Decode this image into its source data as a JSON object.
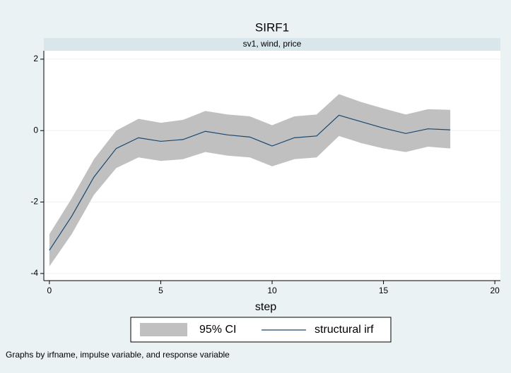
{
  "chart_data": {
    "type": "line",
    "title": "SIRF1",
    "subtitle": "sv1, wind, price",
    "x_label": "step",
    "note": "Graphs by irfname, impulse variable, and response variable",
    "x": [
      0,
      1,
      2,
      3,
      4,
      5,
      6,
      7,
      8,
      9,
      10,
      11,
      12,
      13,
      14,
      15,
      16,
      17,
      18
    ],
    "series": [
      {
        "name": "95% CI",
        "color": "#c0c0c0",
        "lower": [
          -3.8,
          -2.9,
          -1.8,
          -1.05,
          -0.75,
          -0.85,
          -0.8,
          -0.6,
          -0.7,
          -0.75,
          -1.0,
          -0.8,
          -0.75,
          -0.15,
          -0.35,
          -0.5,
          -0.6,
          -0.45,
          -0.5
        ],
        "upper": [
          -2.9,
          -1.9,
          -0.8,
          0.0,
          0.33,
          0.22,
          0.3,
          0.55,
          0.45,
          0.4,
          0.15,
          0.4,
          0.45,
          1.02,
          0.8,
          0.62,
          0.45,
          0.6,
          0.58
        ]
      },
      {
        "name": "structural irf",
        "color": "#1a476f",
        "values": [
          -3.35,
          -2.4,
          -1.3,
          -0.5,
          -0.2,
          -0.3,
          -0.25,
          -0.02,
          -0.12,
          -0.18,
          -0.43,
          -0.2,
          -0.15,
          0.43,
          0.25,
          0.07,
          -0.08,
          0.05,
          0.02
        ]
      }
    ],
    "xlim": [
      -0.25,
      20.25
    ],
    "ylim": [
      -4.2,
      2.235
    ],
    "xticks": [
      0,
      5,
      10,
      15,
      20
    ],
    "yticks": [
      -4,
      -2,
      0,
      2
    ],
    "grid": true
  }
}
